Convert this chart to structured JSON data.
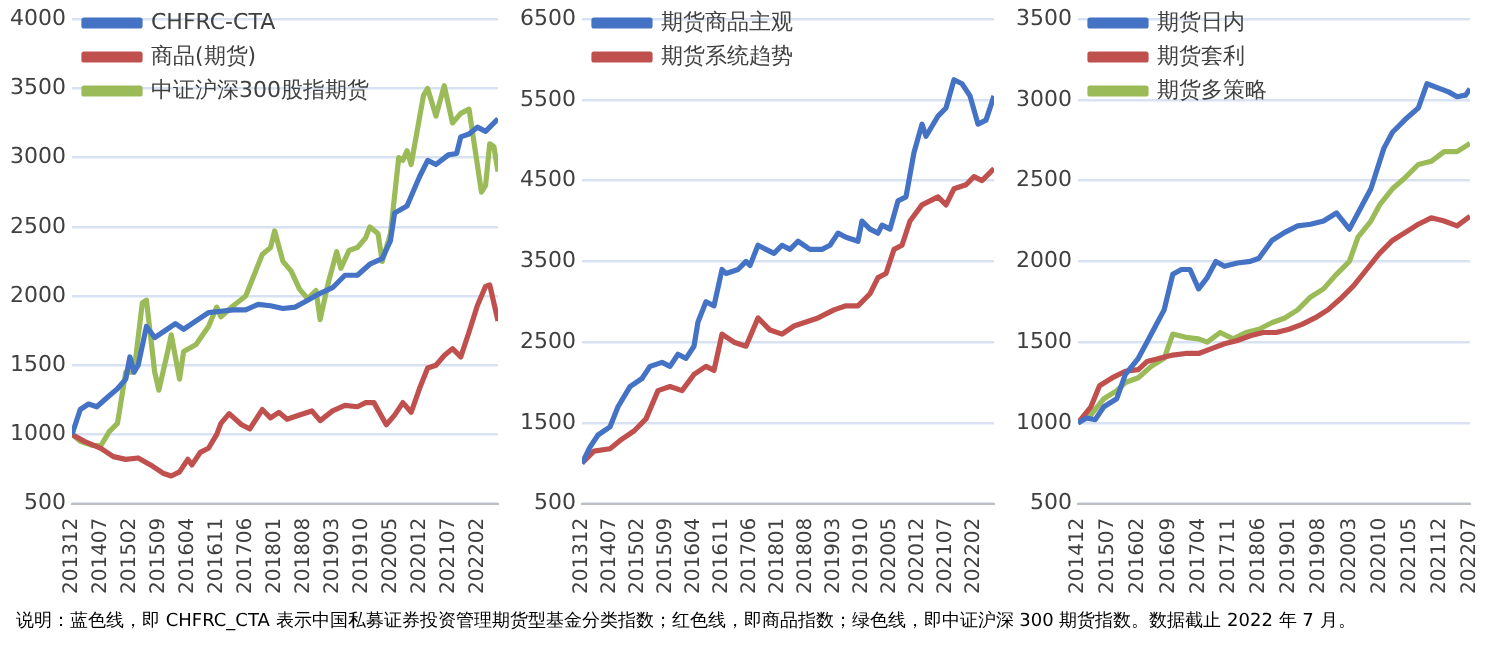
{
  "chart_data": [
    {
      "type": "line",
      "legend": "top left",
      "grid": "y",
      "marker": "none",
      "line_style": "solid",
      "xlim": [
        "2013-12",
        "2022-07"
      ],
      "xticks": [
        {
          "value": "2013-12",
          "label": "201312"
        },
        {
          "value": "2014-07",
          "label": "201407"
        },
        {
          "value": "2015-02",
          "label": "201502"
        },
        {
          "value": "2015-09",
          "label": "201509"
        },
        {
          "value": "2016-04",
          "label": "201604"
        },
        {
          "value": "2016-11",
          "label": "201611"
        },
        {
          "value": "2017-06",
          "label": "201706"
        },
        {
          "value": "2018-01",
          "label": "201801"
        },
        {
          "value": "2018-08",
          "label": "201808"
        },
        {
          "value": "2019-03",
          "label": "201903"
        },
        {
          "value": "2019-10",
          "label": "201910"
        },
        {
          "value": "2020-05",
          "label": "202005"
        },
        {
          "value": "2020-12",
          "label": "202012"
        },
        {
          "value": "2021-07",
          "label": "202107"
        },
        {
          "value": "2022-02",
          "label": "202202"
        }
      ],
      "ylim": [
        500,
        4000
      ],
      "yticks": [
        500,
        1000,
        1500,
        2000,
        2500,
        3000,
        3500,
        4000
      ],
      "annotations": [
        "说明：蓝色线，即 CHFRC_CTA 表示中国私募证券投资管理期货型基金分类指数；红色线，即商品指数；绿色线，即中证沪深 300 期货指数。数据截止 2022 年 7 月。"
      ],
      "series": [
        {
          "name": "CHFRC-CTA",
          "color": "#4472c4",
          "x": [
            "2013-12",
            "2014-02",
            "2014-04",
            "2014-06",
            "2014-09",
            "2014-11",
            "2015-01",
            "2015-02",
            "2015-03",
            "2015-04",
            "2015-06",
            "2015-08",
            "2015-11",
            "2016-01",
            "2016-03",
            "2016-06",
            "2016-09",
            "2016-12",
            "2017-03",
            "2017-06",
            "2017-09",
            "2017-12",
            "2018-03",
            "2018-06",
            "2018-09",
            "2018-12",
            "2019-03",
            "2019-06",
            "2019-09",
            "2019-12",
            "2020-03",
            "2020-05",
            "2020-06",
            "2020-09",
            "2020-12",
            "2021-02",
            "2021-04",
            "2021-07",
            "2021-09",
            "2021-10",
            "2021-12",
            "2022-02",
            "2022-04",
            "2022-07"
          ],
          "values": [
            1000,
            1180,
            1220,
            1200,
            1280,
            1330,
            1400,
            1560,
            1450,
            1500,
            1780,
            1700,
            1760,
            1800,
            1760,
            1820,
            1880,
            1890,
            1900,
            1900,
            1940,
            1930,
            1910,
            1920,
            1970,
            2020,
            2060,
            2150,
            2150,
            2230,
            2270,
            2400,
            2600,
            2650,
            2860,
            2980,
            2950,
            3020,
            3030,
            3150,
            3170,
            3220,
            3190,
            3280
          ]
        },
        {
          "name": "商品(期货)",
          "color": "#c0504d",
          "x": [
            "2013-12",
            "2014-03",
            "2014-07",
            "2014-10",
            "2015-01",
            "2015-04",
            "2015-07",
            "2015-10",
            "2015-12",
            "2016-02",
            "2016-04",
            "2016-05",
            "2016-07",
            "2016-09",
            "2016-11",
            "2016-12",
            "2017-02",
            "2017-05",
            "2017-07",
            "2017-10",
            "2017-12",
            "2018-02",
            "2018-04",
            "2018-07",
            "2018-10",
            "2018-12",
            "2019-03",
            "2019-06",
            "2019-09",
            "2019-11",
            "2020-01",
            "2020-04",
            "2020-06",
            "2020-08",
            "2020-10",
            "2020-12",
            "2021-02",
            "2021-04",
            "2021-06",
            "2021-08",
            "2021-10",
            "2021-12",
            "2022-02",
            "2022-04",
            "2022-05",
            "2022-07"
          ],
          "values": [
            1000,
            950,
            900,
            840,
            820,
            830,
            780,
            720,
            700,
            730,
            820,
            780,
            870,
            900,
            1000,
            1080,
            1150,
            1070,
            1040,
            1180,
            1120,
            1160,
            1110,
            1140,
            1170,
            1100,
            1170,
            1210,
            1200,
            1230,
            1230,
            1070,
            1140,
            1230,
            1160,
            1330,
            1480,
            1500,
            1570,
            1620,
            1560,
            1740,
            1930,
            2070,
            2080,
            1820
          ]
        },
        {
          "name": "中证沪深300股指期货",
          "color": "#9bbb59",
          "x": [
            "2013-12",
            "2014-02",
            "2014-05",
            "2014-07",
            "2014-09",
            "2014-11",
            "2015-01",
            "2015-03",
            "2015-05",
            "2015-06",
            "2015-08",
            "2015-09",
            "2015-11",
            "2015-12",
            "2016-02",
            "2016-03",
            "2016-06",
            "2016-09",
            "2016-11",
            "2016-12",
            "2017-03",
            "2017-06",
            "2017-08",
            "2017-10",
            "2017-12",
            "2018-01",
            "2018-03",
            "2018-05",
            "2018-07",
            "2018-09",
            "2018-11",
            "2018-12",
            "2019-02",
            "2019-04",
            "2019-05",
            "2019-07",
            "2019-09",
            "2019-11",
            "2019-12",
            "2020-02",
            "2020-03",
            "2020-05",
            "2020-07",
            "2020-08",
            "2020-09",
            "2020-10",
            "2021-01",
            "2021-02",
            "2021-04",
            "2021-06",
            "2021-08",
            "2021-10",
            "2021-12",
            "2022-01",
            "2022-03",
            "2022-04",
            "2022-05",
            "2022-06",
            "2022-07"
          ],
          "values": [
            1000,
            950,
            920,
            920,
            1020,
            1080,
            1450,
            1450,
            1950,
            1970,
            1450,
            1320,
            1580,
            1720,
            1400,
            1600,
            1650,
            1780,
            1920,
            1850,
            1930,
            2000,
            2150,
            2300,
            2350,
            2470,
            2250,
            2180,
            2050,
            1980,
            2040,
            1830,
            2100,
            2320,
            2200,
            2330,
            2350,
            2420,
            2500,
            2450,
            2250,
            2450,
            3000,
            2980,
            3050,
            2950,
            3450,
            3500,
            3300,
            3520,
            3250,
            3320,
            3350,
            3150,
            2750,
            2800,
            3100,
            3080,
            2900
          ]
        }
      ]
    },
    {
      "type": "line",
      "legend": "top left",
      "grid": "y",
      "marker": "none",
      "line_style": "solid",
      "xlim": [
        "2013-12",
        "2022-07"
      ],
      "xticks": [
        {
          "value": "2013-12",
          "label": "201312"
        },
        {
          "value": "2014-07",
          "label": "201407"
        },
        {
          "value": "2015-02",
          "label": "201502"
        },
        {
          "value": "2015-09",
          "label": "201509"
        },
        {
          "value": "2016-04",
          "label": "201604"
        },
        {
          "value": "2016-11",
          "label": "201611"
        },
        {
          "value": "2017-06",
          "label": "201706"
        },
        {
          "value": "2018-01",
          "label": "201801"
        },
        {
          "value": "2018-08",
          "label": "201808"
        },
        {
          "value": "2019-03",
          "label": "201903"
        },
        {
          "value": "2019-10",
          "label": "201910"
        },
        {
          "value": "2020-05",
          "label": "202005"
        },
        {
          "value": "2020-12",
          "label": "202012"
        },
        {
          "value": "2021-07",
          "label": "202107"
        },
        {
          "value": "2022-02",
          "label": "202202"
        }
      ],
      "ylim": [
        500,
        6500
      ],
      "yticks": [
        500,
        1500,
        2500,
        3500,
        4500,
        5500,
        6500
      ],
      "series": [
        {
          "name": "期货商品主观",
          "color": "#4472c4",
          "x": [
            "2013-12",
            "2014-02",
            "2014-04",
            "2014-07",
            "2014-09",
            "2014-12",
            "2015-03",
            "2015-05",
            "2015-08",
            "2015-10",
            "2015-12",
            "2016-02",
            "2016-04",
            "2016-05",
            "2016-07",
            "2016-09",
            "2016-11",
            "2016-12",
            "2017-03",
            "2017-05",
            "2017-06",
            "2017-08",
            "2017-10",
            "2017-12",
            "2018-02",
            "2018-04",
            "2018-06",
            "2018-09",
            "2018-12",
            "2019-02",
            "2019-04",
            "2019-06",
            "2019-09",
            "2019-10",
            "2019-12",
            "2020-02",
            "2020-03",
            "2020-05",
            "2020-07",
            "2020-09",
            "2020-11",
            "2021-01",
            "2021-02",
            "2021-05",
            "2021-07",
            "2021-09",
            "2021-11",
            "2022-01",
            "2022-03",
            "2022-05",
            "2022-07"
          ],
          "values": [
            1000,
            1200,
            1350,
            1450,
            1700,
            1950,
            2050,
            2200,
            2250,
            2200,
            2350,
            2300,
            2450,
            2750,
            3000,
            2950,
            3400,
            3350,
            3400,
            3500,
            3450,
            3700,
            3650,
            3600,
            3700,
            3650,
            3750,
            3650,
            3650,
            3700,
            3850,
            3800,
            3750,
            4000,
            3900,
            3850,
            3950,
            3900,
            4250,
            4300,
            4850,
            5200,
            5050,
            5300,
            5400,
            5750,
            5700,
            5550,
            5200,
            5250,
            5550
          ]
        },
        {
          "name": "期货系统趋势",
          "color": "#c0504d",
          "x": [
            "2013-12",
            "2014-03",
            "2014-07",
            "2014-10",
            "2015-01",
            "2015-04",
            "2015-07",
            "2015-10",
            "2016-01",
            "2016-04",
            "2016-07",
            "2016-09",
            "2016-11",
            "2017-02",
            "2017-05",
            "2017-08",
            "2017-11",
            "2018-02",
            "2018-05",
            "2018-08",
            "2018-11",
            "2019-03",
            "2019-06",
            "2019-09",
            "2019-12",
            "2020-02",
            "2020-04",
            "2020-06",
            "2020-08",
            "2020-10",
            "2021-01",
            "2021-03",
            "2021-05",
            "2021-07",
            "2021-09",
            "2021-12",
            "2022-02",
            "2022-04",
            "2022-07"
          ],
          "values": [
            1000,
            1150,
            1180,
            1300,
            1400,
            1550,
            1900,
            1950,
            1900,
            2100,
            2200,
            2150,
            2600,
            2500,
            2450,
            2800,
            2650,
            2600,
            2700,
            2750,
            2800,
            2900,
            2950,
            2950,
            3100,
            3300,
            3350,
            3650,
            3700,
            4000,
            4200,
            4250,
            4300,
            4200,
            4400,
            4450,
            4550,
            4500,
            4650
          ]
        }
      ]
    },
    {
      "type": "line",
      "legend": "top left",
      "grid": "y",
      "marker": "none",
      "line_style": "solid",
      "xlim": [
        "2014-12",
        "2022-07"
      ],
      "xticks": [
        {
          "value": "2014-12",
          "label": "201412"
        },
        {
          "value": "2015-07",
          "label": "201507"
        },
        {
          "value": "2016-02",
          "label": "201602"
        },
        {
          "value": "2016-09",
          "label": "201609"
        },
        {
          "value": "2017-04",
          "label": "201704"
        },
        {
          "value": "2017-11",
          "label": "201711"
        },
        {
          "value": "2018-06",
          "label": "201806"
        },
        {
          "value": "2019-01",
          "label": "201901"
        },
        {
          "value": "2019-08",
          "label": "201908"
        },
        {
          "value": "2020-03",
          "label": "202003"
        },
        {
          "value": "2020-10",
          "label": "202010"
        },
        {
          "value": "2021-05",
          "label": "202105"
        },
        {
          "value": "2021-12",
          "label": "202112"
        },
        {
          "value": "2022-07",
          "label": "202207"
        }
      ],
      "ylim": [
        500,
        3500
      ],
      "yticks": [
        500,
        1000,
        1500,
        2000,
        2500,
        3000,
        3500
      ],
      "series": [
        {
          "name": "期货日内",
          "color": "#4472c4",
          "x": [
            "2014-12",
            "2015-02",
            "2015-04",
            "2015-06",
            "2015-09",
            "2015-11",
            "2016-02",
            "2016-04",
            "2016-06",
            "2016-08",
            "2016-10",
            "2016-12",
            "2017-02",
            "2017-04",
            "2017-06",
            "2017-08",
            "2017-10",
            "2018-01",
            "2018-04",
            "2018-06",
            "2018-09",
            "2018-12",
            "2019-03",
            "2019-06",
            "2019-09",
            "2019-12",
            "2020-03",
            "2020-05",
            "2020-08",
            "2020-11",
            "2021-01",
            "2021-04",
            "2021-07",
            "2021-09",
            "2021-12",
            "2022-02",
            "2022-04",
            "2022-06",
            "2022-07"
          ],
          "values": [
            1000,
            1030,
            1020,
            1100,
            1150,
            1300,
            1400,
            1500,
            1600,
            1700,
            1920,
            1950,
            1950,
            1830,
            1900,
            2000,
            1970,
            1990,
            2000,
            2020,
            2130,
            2180,
            2220,
            2230,
            2250,
            2300,
            2200,
            2300,
            2450,
            2700,
            2800,
            2880,
            2950,
            3100,
            3070,
            3050,
            3020,
            3030,
            3070
          ]
        },
        {
          "name": "期货套利",
          "color": "#c0504d",
          "x": [
            "2014-12",
            "2015-03",
            "2015-05",
            "2015-08",
            "2015-11",
            "2016-02",
            "2016-04",
            "2016-07",
            "2016-10",
            "2017-01",
            "2017-04",
            "2017-07",
            "2017-10",
            "2018-01",
            "2018-04",
            "2018-07",
            "2018-10",
            "2019-01",
            "2019-04",
            "2019-07",
            "2019-10",
            "2020-01",
            "2020-04",
            "2020-07",
            "2020-10",
            "2021-01",
            "2021-04",
            "2021-07",
            "2021-10",
            "2022-01",
            "2022-04",
            "2022-07"
          ],
          "values": [
            1000,
            1100,
            1230,
            1280,
            1320,
            1330,
            1380,
            1400,
            1420,
            1430,
            1430,
            1460,
            1490,
            1510,
            1540,
            1560,
            1560,
            1580,
            1610,
            1650,
            1700,
            1770,
            1850,
            1950,
            2050,
            2130,
            2180,
            2230,
            2270,
            2250,
            2220,
            2280
          ]
        },
        {
          "name": "期货多策略",
          "color": "#9bbb59",
          "x": [
            "2014-12",
            "2015-03",
            "2015-06",
            "2015-09",
            "2015-11",
            "2016-02",
            "2016-05",
            "2016-08",
            "2016-10",
            "2017-01",
            "2017-04",
            "2017-06",
            "2017-09",
            "2017-12",
            "2018-03",
            "2018-06",
            "2018-09",
            "2018-12",
            "2019-03",
            "2019-06",
            "2019-09",
            "2019-12",
            "2020-03",
            "2020-05",
            "2020-08",
            "2020-10",
            "2021-01",
            "2021-04",
            "2021-07",
            "2021-10",
            "2022-01",
            "2022-04",
            "2022-07"
          ],
          "values": [
            1000,
            1050,
            1150,
            1200,
            1250,
            1280,
            1350,
            1400,
            1550,
            1530,
            1520,
            1500,
            1560,
            1520,
            1560,
            1580,
            1620,
            1650,
            1700,
            1780,
            1830,
            1920,
            2000,
            2150,
            2250,
            2350,
            2450,
            2520,
            2600,
            2620,
            2680,
            2680,
            2730
          ]
        }
      ]
    }
  ]
}
